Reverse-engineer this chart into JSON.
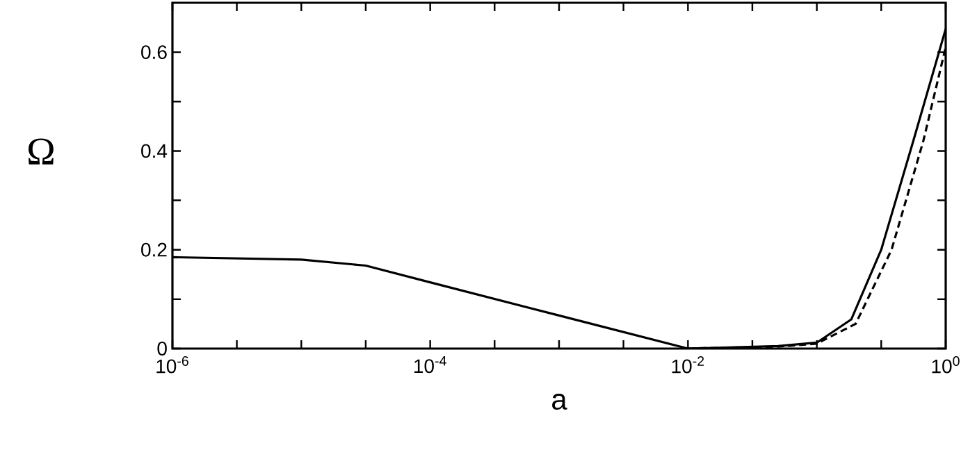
{
  "chart_data": {
    "type": "line",
    "xlabel": "a",
    "ylabel": "Ω",
    "log": "x",
    "xlim": [
      1e-06,
      1
    ],
    "ylim": [
      0,
      0.7
    ],
    "xticks": [
      {
        "value": 1e-06,
        "label": "10$^{-6}$"
      },
      {
        "value": 3.16e-06,
        "label": null
      },
      {
        "value": 1e-05,
        "label": null
      },
      {
        "value": 3.16e-05,
        "label": null
      },
      {
        "value": 0.0001,
        "label": "10$^{-4}$"
      },
      {
        "value": 0.000316,
        "label": null
      },
      {
        "value": 0.001,
        "label": null
      },
      {
        "value": 0.00316,
        "label": null
      },
      {
        "value": 0.01,
        "label": "10$^{-2}$"
      },
      {
        "value": 0.0316,
        "label": null
      },
      {
        "value": 0.1,
        "label": null
      },
      {
        "value": 0.316,
        "label": null
      },
      {
        "value": 1,
        "label": "10$^{0}$"
      }
    ],
    "yticks": [
      0,
      {
        "value": 0.1,
        "label": null
      },
      0.2,
      {
        "value": 0.3,
        "label": null
      },
      0.4,
      {
        "value": 0.5,
        "label": null
      },
      0.6
    ],
    "series": [
      {
        "color": "#000000",
        "line_style": "solid",
        "x": [
          1e-06,
          1e-05,
          3.16e-05,
          0.0001,
          0.001,
          0.01,
          0.05,
          0.1,
          0.185,
          0.316,
          0.56,
          1
        ],
        "values": [
          0.185,
          0.18,
          0.168,
          0.134,
          0.067,
          0.0,
          0.005,
          0.012,
          0.059,
          0.2,
          0.42,
          0.647
        ]
      },
      {
        "color": "#000000",
        "line_style": "dashed",
        "x": [
          0.01,
          0.05,
          0.1,
          0.2,
          0.38,
          0.67,
          1
        ],
        "values": [
          0.0,
          0.004,
          0.01,
          0.05,
          0.2,
          0.42,
          0.61
        ]
      }
    ]
  }
}
